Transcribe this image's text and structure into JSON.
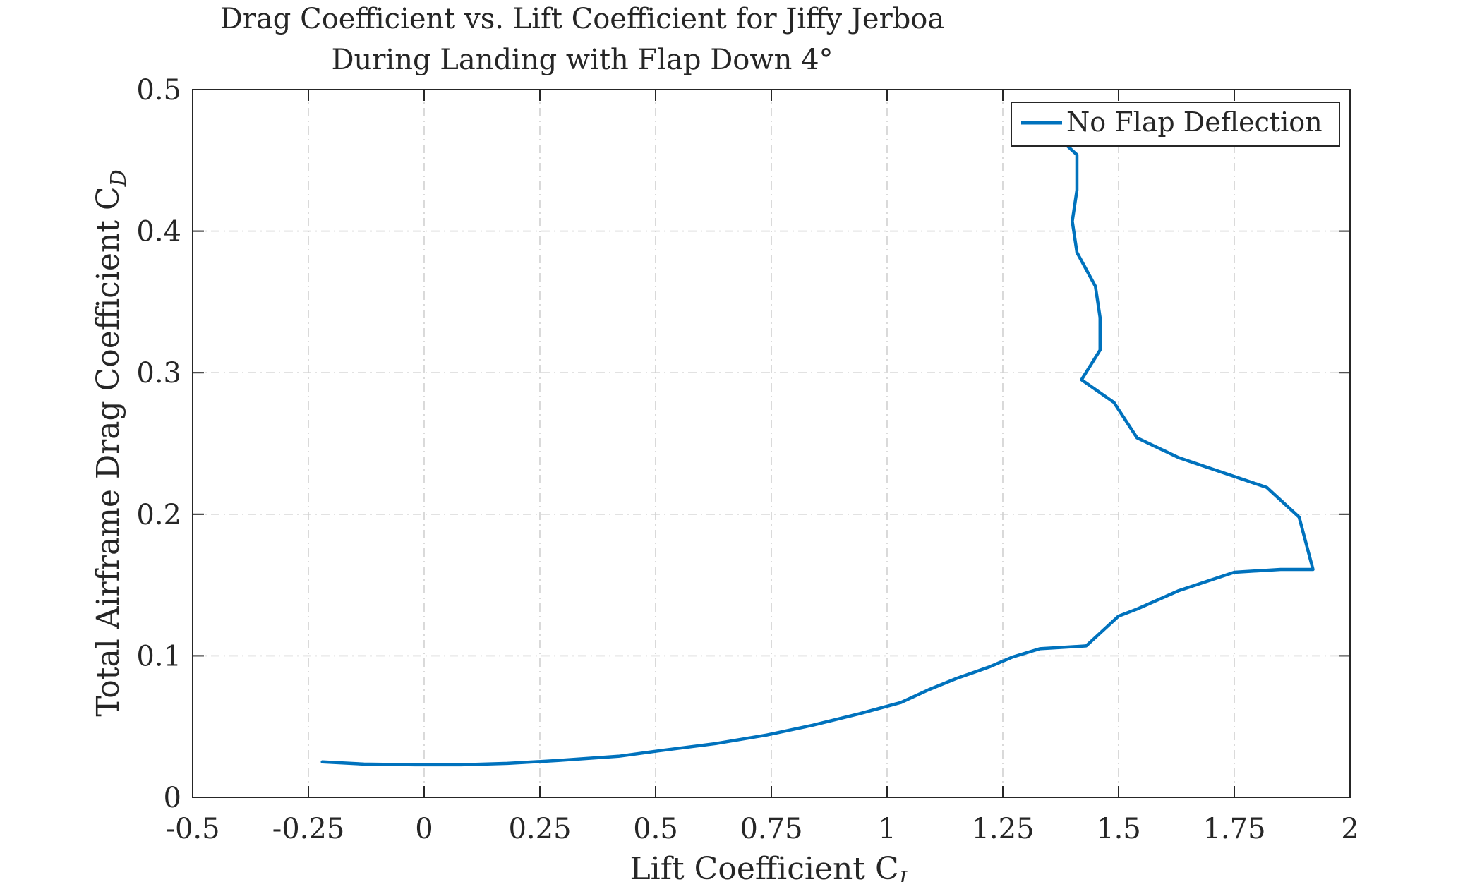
{
  "chart_data": {
    "type": "line",
    "title": "Drag Coefficient vs. Lift Coefficient for Jiffy Jerboa",
    "subtitle": "During Landing with Flap Down 4°",
    "xlabel": "Lift Coefficient C",
    "xlabel_sub": "L",
    "ylabel": "Total Airframe Drag Coefficient C",
    "ylabel_sub": "D",
    "xlim": [
      -0.5,
      2
    ],
    "ylim": [
      0,
      0.5
    ],
    "xticks": [
      -0.5,
      -0.25,
      0,
      0.25,
      0.5,
      0.75,
      1,
      1.25,
      1.5,
      1.75,
      2
    ],
    "xtick_labels": [
      "-0.5",
      "-0.25",
      "0",
      "0.25",
      "0.5",
      "0.75",
      "1",
      "1.25",
      "1.5",
      "1.75",
      "2"
    ],
    "yticks": [
      0,
      0.1,
      0.2,
      0.3,
      0.4,
      0.5
    ],
    "ytick_labels": [
      "0",
      "0.1",
      "0.2",
      "0.3",
      "0.4",
      "0.5"
    ],
    "grid": true,
    "legend_position": "top-right",
    "series": [
      {
        "name": "No Flap Deflection",
        "color": "#0072BD",
        "x": [
          -0.22,
          -0.13,
          -0.02,
          0.08,
          0.18,
          0.29,
          0.42,
          0.51,
          0.63,
          0.74,
          0.84,
          0.94,
          1.03,
          1.09,
          1.15,
          1.22,
          1.27,
          1.33,
          1.43,
          1.5,
          1.54,
          1.63,
          1.75,
          1.85,
          1.92,
          1.89,
          1.82,
          1.63,
          1.54,
          1.49,
          1.42,
          1.46,
          1.46,
          1.45,
          1.41,
          1.4,
          1.41,
          1.41,
          1.39
        ],
        "y": [
          0.025,
          0.0235,
          0.023,
          0.023,
          0.024,
          0.026,
          0.029,
          0.033,
          0.038,
          0.044,
          0.051,
          0.059,
          0.067,
          0.076,
          0.084,
          0.092,
          0.099,
          0.105,
          0.107,
          0.128,
          0.133,
          0.146,
          0.159,
          0.161,
          0.161,
          0.198,
          0.219,
          0.24,
          0.254,
          0.279,
          0.295,
          0.316,
          0.339,
          0.361,
          0.385,
          0.407,
          0.429,
          0.454,
          0.46
        ]
      }
    ]
  }
}
